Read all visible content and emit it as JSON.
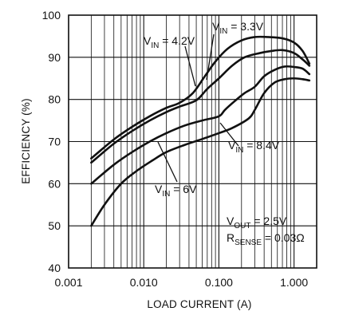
{
  "chart_data": {
    "type": "line",
    "xlabel": "LOAD CURRENT (A)",
    "ylabel": "EFFICIENCY (%)",
    "xscale": "log",
    "xlim": [
      0.001,
      2
    ],
    "ylim": [
      40,
      100
    ],
    "grid": true,
    "x_tick_labels": [
      "0.001",
      "0.010",
      "0.100",
      "1.000"
    ],
    "y_tick_labels": [
      "40",
      "50",
      "60",
      "70",
      "80",
      "90",
      "100"
    ],
    "series": [
      {
        "name": "VIN = 3.3V",
        "x": [
          0.002,
          0.004,
          0.007,
          0.012,
          0.02,
          0.03,
          0.045,
          0.065,
          0.09,
          0.13,
          0.2,
          0.3,
          0.45,
          0.7,
          1.0,
          1.3,
          1.6
        ],
        "y": [
          66,
          70.5,
          73.5,
          76,
          78,
          79.2,
          81.5,
          85.5,
          89,
          92,
          94,
          94.8,
          94.8,
          94.5,
          93.5,
          91.5,
          88.5
        ]
      },
      {
        "name": "VIN = 4.2V",
        "x": [
          0.002,
          0.004,
          0.007,
          0.012,
          0.02,
          0.03,
          0.05,
          0.07,
          0.1,
          0.15,
          0.22,
          0.35,
          0.5,
          0.7,
          1.0,
          1.3,
          1.6
        ],
        "y": [
          65,
          69.5,
          72.5,
          75,
          77,
          78.3,
          79.8,
          82.5,
          85,
          88,
          90,
          91,
          91.5,
          91.7,
          91,
          89.5,
          88
        ]
      },
      {
        "name": "VIN = 8.4V",
        "x": [
          0.002,
          0.004,
          0.007,
          0.012,
          0.02,
          0.035,
          0.06,
          0.1,
          0.12,
          0.16,
          0.22,
          0.3,
          0.4,
          0.55,
          0.75,
          1.0,
          1.3,
          1.6
        ],
        "y": [
          60,
          64.5,
          67.5,
          70,
          72,
          73.8,
          75,
          76,
          77.5,
          79.5,
          81.5,
          83,
          85.5,
          87,
          87.8,
          87.7,
          87.3,
          86
        ]
      },
      {
        "name": "VIN = 6V",
        "x": [
          0.002,
          0.003,
          0.005,
          0.008,
          0.013,
          0.02,
          0.035,
          0.06,
          0.1,
          0.15,
          0.25,
          0.3,
          0.4,
          0.55,
          0.75,
          1.0,
          1.3,
          1.6
        ],
        "y": [
          50,
          55,
          60,
          63,
          65.5,
          67.5,
          69.2,
          70.6,
          72,
          73.2,
          75.5,
          77.5,
          81.5,
          84,
          84.8,
          85,
          84.8,
          84.5
        ]
      }
    ],
    "annotations": {
      "vin_33": {
        "prefix": "V",
        "sub": "IN",
        "suffix": " = 3.3V"
      },
      "vin_42": {
        "prefix": "V",
        "sub": "IN",
        "suffix": " = 4.2V"
      },
      "vin_84": {
        "prefix": "V",
        "sub": "IN",
        "suffix": " = 8.4V"
      },
      "vin_6": {
        "prefix": "V",
        "sub": "IN",
        "suffix": " = 6V"
      },
      "vout": {
        "prefix": "V",
        "sub": "OUT",
        "suffix": " = 2.5V"
      },
      "rsense": {
        "prefix": "R",
        "sub": "SENSE",
        "suffix": " = 0.03Ω"
      }
    }
  }
}
